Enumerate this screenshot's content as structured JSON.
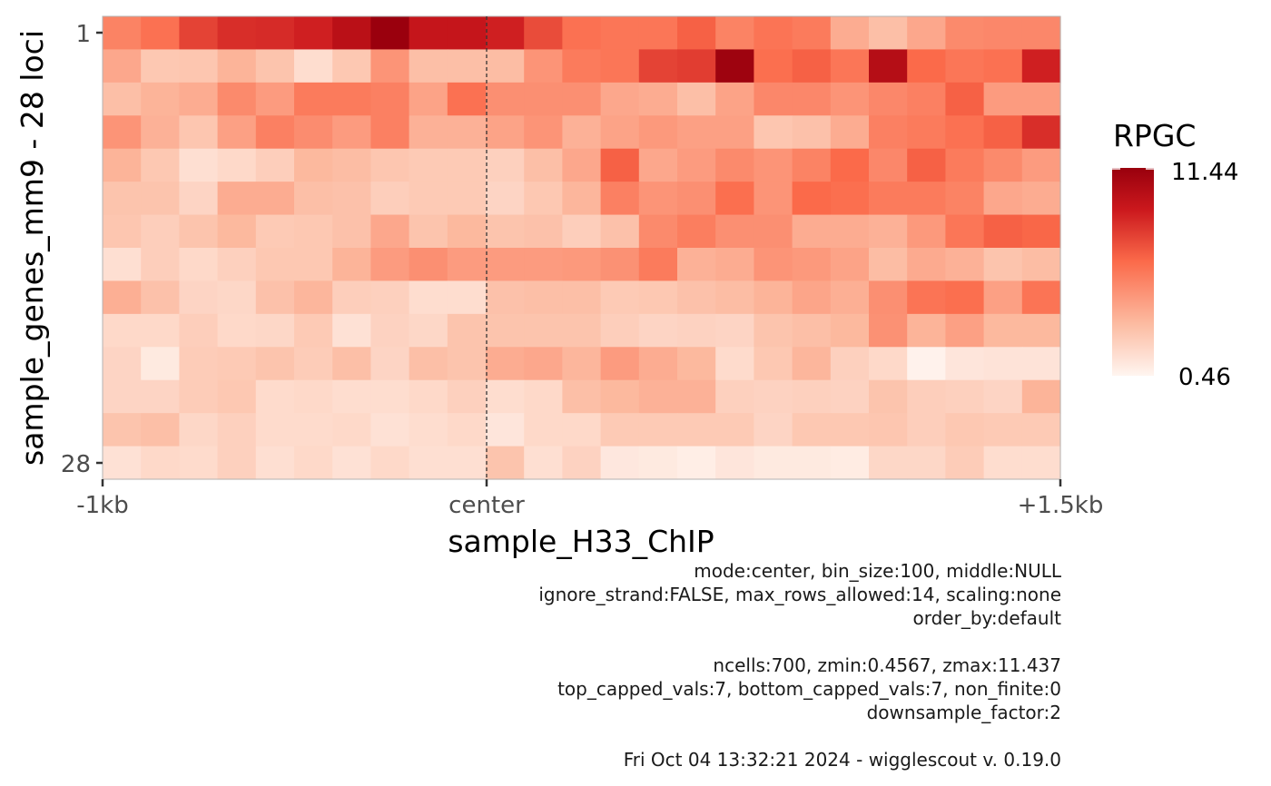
{
  "chart_data": {
    "type": "heatmap",
    "xlabel": "sample_H33_ChIP",
    "ylabel": "sample_genes_mm9 - 28 loci",
    "x_tick_labels": [
      "-1kb",
      "center",
      "+1.5kb"
    ],
    "y_tick_labels": [
      "1",
      "28"
    ],
    "center_line": "center",
    "legend": {
      "title": "RPGC",
      "max_label": "11.44",
      "min_label": "0.46",
      "min": 0.46,
      "max": 11.44,
      "colors": [
        "#fff5f0",
        "#fcbba1",
        "#fb6a4a",
        "#cb181d",
        "#99000d"
      ],
      "placement": "right"
    },
    "n_columns": 25,
    "n_rows": 14,
    "values": [
      [
        5.5,
        6.2,
        7.8,
        8.5,
        8.6,
        9.0,
        10.0,
        11.4,
        9.5,
        9.5,
        9.0,
        7.5,
        6.2,
        6.0,
        6.0,
        6.8,
        5.5,
        6.1,
        5.8,
        3.8,
        3.0,
        4.0,
        5.2,
        5.3,
        5.3
      ],
      [
        4.0,
        2.6,
        2.7,
        3.5,
        2.8,
        1.6,
        2.6,
        4.8,
        3.0,
        3.0,
        3.1,
        4.8,
        5.8,
        6.0,
        7.8,
        8.0,
        11.2,
        6.3,
        6.8,
        6.0,
        10.2,
        6.5,
        6.0,
        6.2,
        9.0
      ],
      [
        3.0,
        3.5,
        3.8,
        5.2,
        4.5,
        5.8,
        5.8,
        5.6,
        4.2,
        6.2,
        5.0,
        5.0,
        5.0,
        4.0,
        3.8,
        3.0,
        4.2,
        5.3,
        5.3,
        4.8,
        5.3,
        5.6,
        6.8,
        4.5,
        4.5
      ],
      [
        4.8,
        3.6,
        2.7,
        4.3,
        5.6,
        5.1,
        4.5,
        5.6,
        3.6,
        3.6,
        4.2,
        4.8,
        3.6,
        4.2,
        4.6,
        4.3,
        4.3,
        2.7,
        2.9,
        3.8,
        5.6,
        5.8,
        6.2,
        6.8,
        8.5
      ],
      [
        3.5,
        2.6,
        1.5,
        1.8,
        2.3,
        3.3,
        3.1,
        2.7,
        2.5,
        2.5,
        2.2,
        3.0,
        4.0,
        6.8,
        4.0,
        4.5,
        5.2,
        4.8,
        5.5,
        6.5,
        5.3,
        6.8,
        5.8,
        5.2,
        4.5
      ],
      [
        2.8,
        2.8,
        2.0,
        3.8,
        3.8,
        3.0,
        2.9,
        2.3,
        2.5,
        2.5,
        2.0,
        2.6,
        3.4,
        5.6,
        4.8,
        5.0,
        6.3,
        4.8,
        6.5,
        6.3,
        5.8,
        5.8,
        5.5,
        4.0,
        3.8
      ],
      [
        2.7,
        2.3,
        2.8,
        3.3,
        2.5,
        2.6,
        2.9,
        4.0,
        2.8,
        3.3,
        2.8,
        2.9,
        2.3,
        2.9,
        5.2,
        5.7,
        5.0,
        5.0,
        3.8,
        3.8,
        3.6,
        4.6,
        6.0,
        6.8,
        6.6
      ],
      [
        1.5,
        2.3,
        1.8,
        2.2,
        2.6,
        2.6,
        3.5,
        4.5,
        5.0,
        4.5,
        4.5,
        4.5,
        4.6,
        4.9,
        5.8,
        3.6,
        3.8,
        4.8,
        4.6,
        4.2,
        3.1,
        3.9,
        3.6,
        2.8,
        3.1
      ],
      [
        3.7,
        2.9,
        2.0,
        1.9,
        2.9,
        3.4,
        2.3,
        2.2,
        1.6,
        1.6,
        2.9,
        3.0,
        3.0,
        2.5,
        2.6,
        2.9,
        3.1,
        3.5,
        4.1,
        3.7,
        5.0,
        6.1,
        6.3,
        4.3,
        6.1
      ],
      [
        1.8,
        1.8,
        2.3,
        1.8,
        1.9,
        2.5,
        1.4,
        2.1,
        1.9,
        2.8,
        2.8,
        2.8,
        2.8,
        2.3,
        2.0,
        2.1,
        2.0,
        2.8,
        3.0,
        3.3,
        4.9,
        3.5,
        4.3,
        3.3,
        3.3
      ],
      [
        2.0,
        1.0,
        2.4,
        2.5,
        2.8,
        2.4,
        3.0,
        2.0,
        3.0,
        2.8,
        3.8,
        4.0,
        3.4,
        4.5,
        3.8,
        3.3,
        1.7,
        2.6,
        3.4,
        2.2,
        1.8,
        0.6,
        1.2,
        1.3,
        1.3
      ],
      [
        2.0,
        2.0,
        2.4,
        2.6,
        1.7,
        1.8,
        1.6,
        1.6,
        1.8,
        2.2,
        1.6,
        1.8,
        3.0,
        3.3,
        3.6,
        3.6,
        2.2,
        2.1,
        2.2,
        2.1,
        2.8,
        2.3,
        2.2,
        2.0,
        3.5
      ],
      [
        2.8,
        3.0,
        1.9,
        2.2,
        1.7,
        1.7,
        1.8,
        1.4,
        1.6,
        1.8,
        1.2,
        1.8,
        1.8,
        2.5,
        2.5,
        2.5,
        2.5,
        2.0,
        2.6,
        2.6,
        2.7,
        2.3,
        2.6,
        2.5,
        2.5
      ],
      [
        1.4,
        1.8,
        1.7,
        2.2,
        1.5,
        1.8,
        1.4,
        1.8,
        1.5,
        1.5,
        2.8,
        1.5,
        2.1,
        1.1,
        1.0,
        0.8,
        1.2,
        1.0,
        1.0,
        0.9,
        1.9,
        1.9,
        2.4,
        1.6,
        1.6
      ]
    ]
  },
  "caption": {
    "lines": [
      "mode:center, bin_size:100, middle:NULL",
      "ignore_strand:FALSE, max_rows_allowed:14, scaling:none",
      "order_by:default",
      "",
      "ncells:700, zmin:0.4567, zmax:11.437",
      "top_capped_vals:7, bottom_capped_vals:7, non_finite:0",
      "downsample_factor:2",
      "",
      "Fri Oct 04 13:32:21 2024 - wigglescout v. 0.19.0"
    ]
  }
}
